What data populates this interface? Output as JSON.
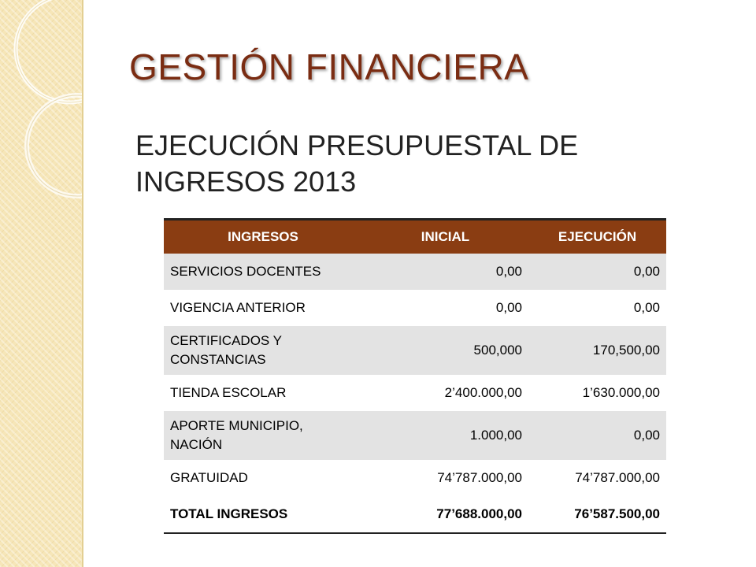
{
  "title": "GESTIÓN FINANCIERA",
  "subtitle": "EJECUCIÓN PRESUPUESTAL DE INGRESOS 2013",
  "colors": {
    "title": "#7a2c12",
    "header_bg": "#8a3d12",
    "side_band": "#f6e6b8",
    "row_shade": "#e3e3e3"
  },
  "table": {
    "headers": [
      "INGRESOS",
      "INICIAL",
      "EJECUCIÓN"
    ],
    "rows": [
      [
        "SERVICIOS DOCENTES",
        "0,00",
        "0,00"
      ],
      [
        "VIGENCIA ANTERIOR",
        "0,00",
        "0,00"
      ],
      [
        "CERTIFICADOS Y CONSTANCIAS",
        "500,000",
        "170,500,00"
      ],
      [
        "TIENDA ESCOLAR",
        "2’400.000,00",
        "1’630.000,00"
      ],
      [
        "APORTE MUNICIPIO, NACIÓN",
        "1.000,00",
        "0,00"
      ],
      [
        "GRATUIDAD",
        "74’787.000,00",
        "74’787.000,00"
      ]
    ],
    "total": [
      "TOTAL INGRESOS",
      "77’688.000,00",
      "76’587.500,00"
    ]
  }
}
